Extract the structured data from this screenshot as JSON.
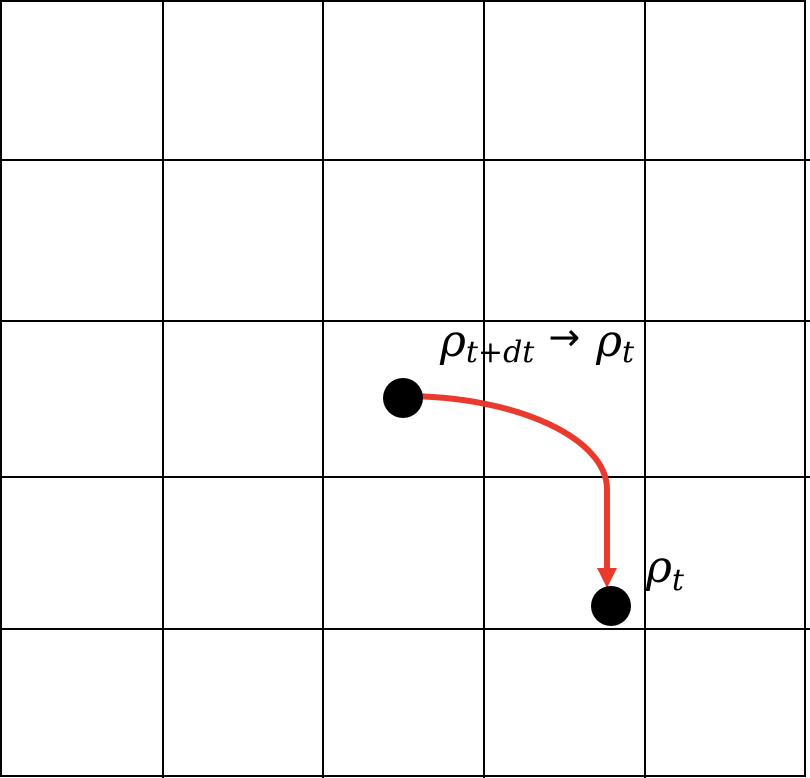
{
  "labels": {
    "top": {
      "from_base": "ρ",
      "from_sub": "t+dt",
      "arrow": "→",
      "to_base": "ρ",
      "to_sub": "t"
    },
    "bottom": {
      "base": "ρ",
      "sub": "t"
    }
  },
  "colors": {
    "grid": "#000000",
    "trajectory": "#e83a2d",
    "point": "#000000",
    "background": "#ffffff"
  }
}
